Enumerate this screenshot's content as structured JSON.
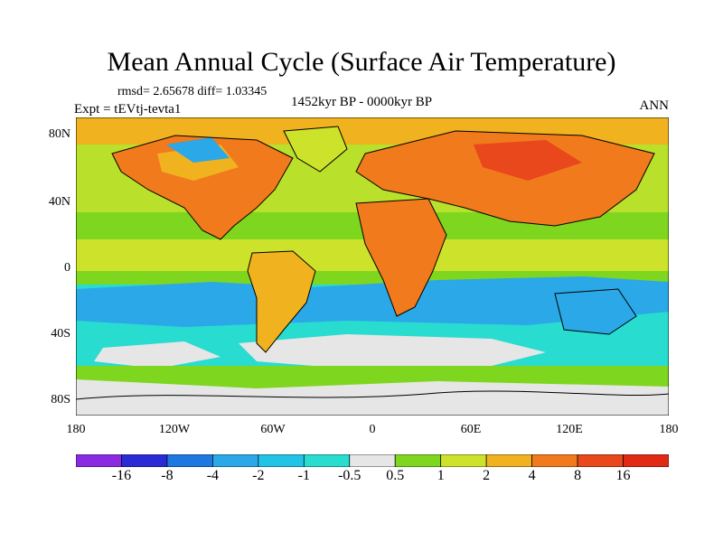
{
  "title": "Mean Annual Cycle (Surface Air Temperature)",
  "stats": "rmsd= 2.65678 diff= 1.03345",
  "experiment": "Expt = tEVtj-tevta1",
  "period": "1452kyr BP - 0000kyr BP",
  "season": "ANN",
  "lat_labels": [
    "80N",
    "40N",
    "0",
    "40S",
    "80S"
  ],
  "lon_labels": [
    "180",
    "120W",
    "60W",
    "0",
    "60E",
    "120E",
    "180"
  ],
  "colorbar": {
    "labels": [
      "-16",
      "-8",
      "-4",
      "-2",
      "-1",
      "-0.5",
      "0.5",
      "1",
      "2",
      "4",
      "8",
      "16"
    ],
    "colors": [
      "#8a2be2",
      "#2b2bd6",
      "#1f77e0",
      "#2aa8e8",
      "#22c4e6",
      "#28dcd0",
      "#e6e6e6",
      "#7ed61f",
      "#cde32b",
      "#f0b21e",
      "#f07a1c",
      "#e8481c",
      "#e02a14"
    ]
  }
}
